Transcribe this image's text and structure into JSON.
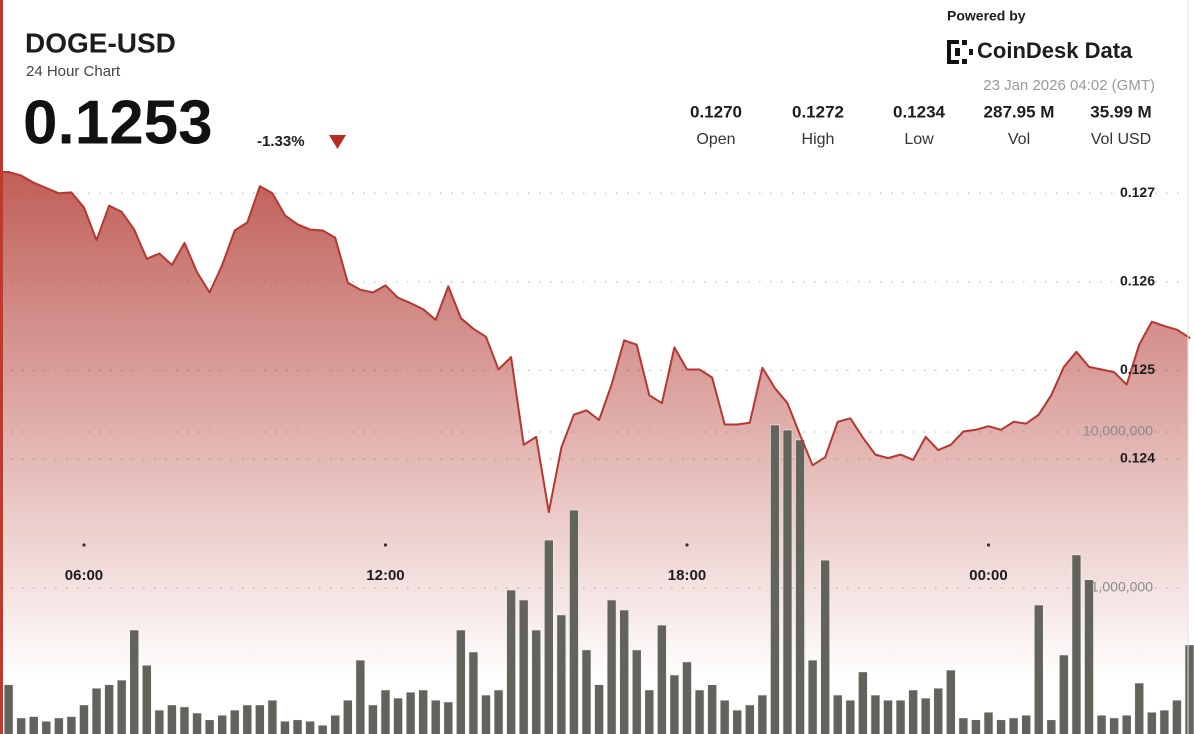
{
  "header": {
    "symbol": "DOGE-USD",
    "subtitle": "24 Hour Chart",
    "price": 0.1253,
    "change": "-1.33%",
    "powered_by": "Powered by",
    "brand": "CoinDesk Data",
    "timestamp": "23 Jan 2026 04:02 (GMT)",
    "stats": [
      {
        "value": "0.1270",
        "label": "Open"
      },
      {
        "value": "0.1272",
        "label": "High"
      },
      {
        "value": "0.1234",
        "label": "Low"
      },
      {
        "value": "287.95 M",
        "label": "Vol"
      },
      {
        "value": "35.99 M",
        "label": "Vol USD"
      }
    ]
  },
  "chart_data": {
    "type": "line",
    "x": [
      "04:30",
      "04:45",
      "05:00",
      "05:15",
      "05:30",
      "05:45",
      "06:00",
      "06:15",
      "06:30",
      "06:45",
      "07:00",
      "07:15",
      "07:30",
      "07:45",
      "08:00",
      "08:15",
      "08:30",
      "08:45",
      "09:00",
      "09:15",
      "09:30",
      "09:45",
      "10:00",
      "10:15",
      "10:30",
      "10:45",
      "11:00",
      "11:15",
      "11:30",
      "11:45",
      "12:00",
      "12:15",
      "12:30",
      "12:45",
      "13:00",
      "13:15",
      "13:30",
      "13:45",
      "14:00",
      "14:15",
      "14:30",
      "14:45",
      "15:00",
      "15:15",
      "15:30",
      "15:45",
      "16:00",
      "16:15",
      "16:30",
      "16:45",
      "17:00",
      "17:15",
      "17:30",
      "17:45",
      "18:00",
      "18:15",
      "18:30",
      "18:45",
      "19:00",
      "19:15",
      "19:30",
      "19:45",
      "20:00",
      "20:15",
      "20:30",
      "20:45",
      "21:00",
      "21:15",
      "21:30",
      "21:45",
      "22:00",
      "22:15",
      "22:30",
      "22:45",
      "23:00",
      "23:15",
      "23:30",
      "23:45",
      "00:00",
      "00:15",
      "00:30",
      "00:45",
      "01:00",
      "01:15",
      "01:30",
      "01:45",
      "02:00",
      "02:15",
      "02:30",
      "02:45",
      "03:00",
      "03:15",
      "03:30",
      "03:45",
      "04:00"
    ],
    "series": [
      {
        "color": "#b5372f",
        "values": [
          0.12724,
          0.1272,
          0.12712,
          0.12706,
          0.127,
          0.12701,
          0.12684,
          0.12647,
          0.12686,
          0.12679,
          0.12659,
          0.12626,
          0.12632,
          0.12619,
          0.12644,
          0.12611,
          0.12588,
          0.12619,
          0.12658,
          0.12667,
          0.12708,
          0.127,
          0.12675,
          0.12665,
          0.12659,
          0.12658,
          0.1265,
          0.12599,
          0.12591,
          0.12588,
          0.12596,
          0.12582,
          0.12576,
          0.12569,
          0.12557,
          0.12595,
          0.12559,
          0.12547,
          0.12538,
          0.12501,
          0.12515,
          0.12416,
          0.12425,
          0.1234,
          0.12413,
          0.1245,
          0.12455,
          0.12444,
          0.12484,
          0.12534,
          0.12529,
          0.12472,
          0.12463,
          0.12526,
          0.12501,
          0.12501,
          0.12492,
          0.12439,
          0.12439,
          0.12441,
          0.12503,
          0.1248,
          0.12463,
          0.12427,
          0.12393,
          0.12402,
          0.12442,
          0.12446,
          0.12424,
          0.12405,
          0.12401,
          0.12405,
          0.12399,
          0.12425,
          0.1241,
          0.12416,
          0.12431,
          0.12433,
          0.12437,
          0.12433,
          0.12442,
          0.1244,
          0.1245,
          0.12472,
          0.12504,
          0.12521,
          0.12504,
          0.12501,
          0.12498,
          0.12484,
          0.12529,
          0.12555,
          0.1255,
          0.12546,
          0.12537
        ]
      },
      {
        "type": "bar",
        "axis": "y2",
        "color": "#62645c",
        "values": [
          240000,
          147000,
          150000,
          140000,
          147000,
          150000,
          178000,
          228000,
          240000,
          257000,
          538000,
          320000,
          165000,
          178000,
          173000,
          158000,
          143000,
          153000,
          165000,
          178000,
          178000,
          191000,
          140000,
          143000,
          140000,
          132000,
          153000,
          191000,
          345000,
          178000,
          222000,
          197000,
          215000,
          222000,
          191000,
          186000,
          538000,
          389000,
          206000,
          222000,
          971000,
          838000,
          538000,
          2030000,
          672000,
          3160000,
          401000,
          240000,
          838000,
          723000,
          401000,
          222000,
          579000,
          277000,
          336000,
          222000,
          240000,
          191000,
          165000,
          178000,
          206000,
          11100000,
          10300000,
          8900000,
          345000,
          1510000,
          206000,
          191000,
          290000,
          206000,
          191000,
          191000,
          222000,
          197000,
          228000,
          298000,
          147000,
          143000,
          160000,
          143000,
          147000,
          153000,
          778000,
          143000,
          372000,
          1630000,
          1130000,
          153000,
          147000,
          153000,
          246000,
          160000,
          165000,
          191000,
          432000
        ]
      }
    ],
    "xticks": [
      "06:00",
      "12:00",
      "18:00",
      "00:00"
    ],
    "ylim": [
      0.1233,
      0.1275
    ],
    "yticks": [
      0.124,
      0.125,
      0.126,
      0.127
    ],
    "y2lim": [
      100000,
      100000000
    ],
    "y2log": true,
    "y2ticks": [
      {
        "value": 1000000,
        "label": "1,000,000"
      },
      {
        "value": 10000000,
        "label": "10,000,000"
      }
    ],
    "grid": true
  }
}
